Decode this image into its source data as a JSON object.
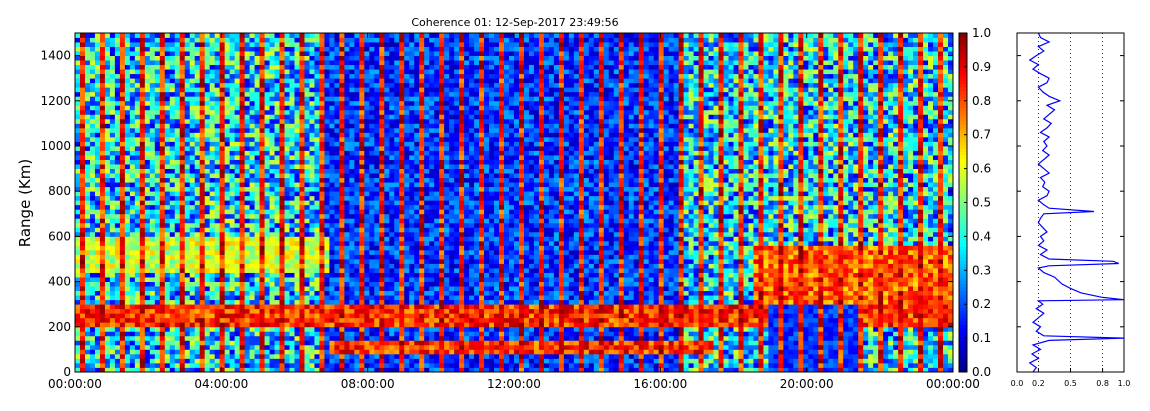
{
  "chart_data": [
    {
      "type": "heatmap",
      "title": "Coherence 01: 12-Sep-2017 23:49:56",
      "xlabel": "",
      "ylabel": "Range (Km)",
      "x_ticks": [
        "00:00:00",
        "04:00:00",
        "08:00:00",
        "12:00:00",
        "16:00:00",
        "20:00:00",
        "00:00:00"
      ],
      "x_range_hours": [
        0,
        24
      ],
      "y_ticks": [
        0,
        200,
        400,
        600,
        800,
        1000,
        1200,
        1400
      ],
      "ylim": [
        0,
        1500
      ],
      "colorbar": {
        "ticks": [
          "0.0",
          "0.1",
          "0.2",
          "0.3",
          "0.4",
          "0.5",
          "0.6",
          "0.7",
          "0.8",
          "0.9",
          "1.0"
        ],
        "range": [
          0,
          1
        ],
        "colormap": "jet"
      },
      "features": [
        {
          "hours": [
            0,
            24
          ],
          "range_km": [
            200,
            300
          ],
          "value": 0.95
        },
        {
          "hours": [
            7,
            17.5
          ],
          "range_km": [
            80,
            130
          ],
          "value": 0.95
        },
        {
          "hours": [
            0,
            7
          ],
          "range_km": [
            450,
            600
          ],
          "value": 0.7
        },
        {
          "hours": [
            18.5,
            24
          ],
          "range_km": [
            250,
            550
          ],
          "value": 0.9
        }
      ]
    },
    {
      "type": "line",
      "title": "",
      "x_ticks": [
        "0.0",
        "0.2",
        "0.5",
        "0.8",
        "1.0"
      ],
      "xlim": [
        0,
        1
      ],
      "ylim": [
        0,
        1500
      ],
      "grid": "vertical dotted",
      "series": [
        {
          "color": "#0000ff",
          "points": [
            [
              0.15,
              0
            ],
            [
              0.18,
              20
            ],
            [
              0.12,
              40
            ],
            [
              0.2,
              60
            ],
            [
              0.14,
              80
            ],
            [
              0.22,
              100
            ],
            [
              0.15,
              120
            ],
            [
              0.3,
              140
            ],
            [
              1.0,
              150
            ],
            [
              0.25,
              160
            ],
            [
              0.18,
              180
            ],
            [
              0.22,
              200
            ],
            [
              0.15,
              220
            ],
            [
              0.2,
              240
            ],
            [
              0.25,
              260
            ],
            [
              0.18,
              280
            ],
            [
              0.24,
              300
            ],
            [
              0.2,
              315
            ],
            [
              1.0,
              320
            ],
            [
              0.8,
              330
            ],
            [
              0.6,
              350
            ],
            [
              0.5,
              370
            ],
            [
              0.42,
              390
            ],
            [
              0.35,
              420
            ],
            [
              0.25,
              440
            ],
            [
              0.2,
              460
            ],
            [
              0.3,
              470
            ],
            [
              0.95,
              480
            ],
            [
              0.9,
              490
            ],
            [
              0.3,
              500
            ],
            [
              0.22,
              520
            ],
            [
              0.28,
              540
            ],
            [
              0.2,
              560
            ],
            [
              0.25,
              580
            ],
            [
              0.22,
              600
            ],
            [
              0.28,
              620
            ],
            [
              0.24,
              640
            ],
            [
              0.2,
              660
            ],
            [
              0.22,
              680
            ],
            [
              0.25,
              700
            ],
            [
              0.72,
              710
            ],
            [
              0.3,
              725
            ],
            [
              0.25,
              740
            ],
            [
              0.2,
              760
            ],
            [
              0.28,
              780
            ],
            [
              0.3,
              800
            ],
            [
              0.24,
              820
            ],
            [
              0.26,
              840
            ],
            [
              0.22,
              860
            ],
            [
              0.3,
              880
            ],
            [
              0.25,
              900
            ],
            [
              0.2,
              920
            ],
            [
              0.25,
              940
            ],
            [
              0.3,
              960
            ],
            [
              0.24,
              980
            ],
            [
              0.28,
              1000
            ],
            [
              0.25,
              1020
            ],
            [
              0.3,
              1040
            ],
            [
              0.22,
              1060
            ],
            [
              0.28,
              1080
            ],
            [
              0.32,
              1100
            ],
            [
              0.25,
              1120
            ],
            [
              0.3,
              1140
            ],
            [
              0.35,
              1160
            ],
            [
              0.28,
              1180
            ],
            [
              0.4,
              1200
            ],
            [
              0.3,
              1220
            ],
            [
              0.24,
              1240
            ],
            [
              0.2,
              1260
            ],
            [
              0.28,
              1280
            ],
            [
              0.3,
              1300
            ],
            [
              0.22,
              1320
            ],
            [
              0.15,
              1340
            ],
            [
              0.2,
              1360
            ],
            [
              0.12,
              1380
            ],
            [
              0.18,
              1400
            ],
            [
              0.25,
              1420
            ],
            [
              0.2,
              1440
            ],
            [
              0.3,
              1460
            ],
            [
              0.22,
              1480
            ],
            [
              0.2,
              1500
            ]
          ]
        }
      ]
    }
  ]
}
